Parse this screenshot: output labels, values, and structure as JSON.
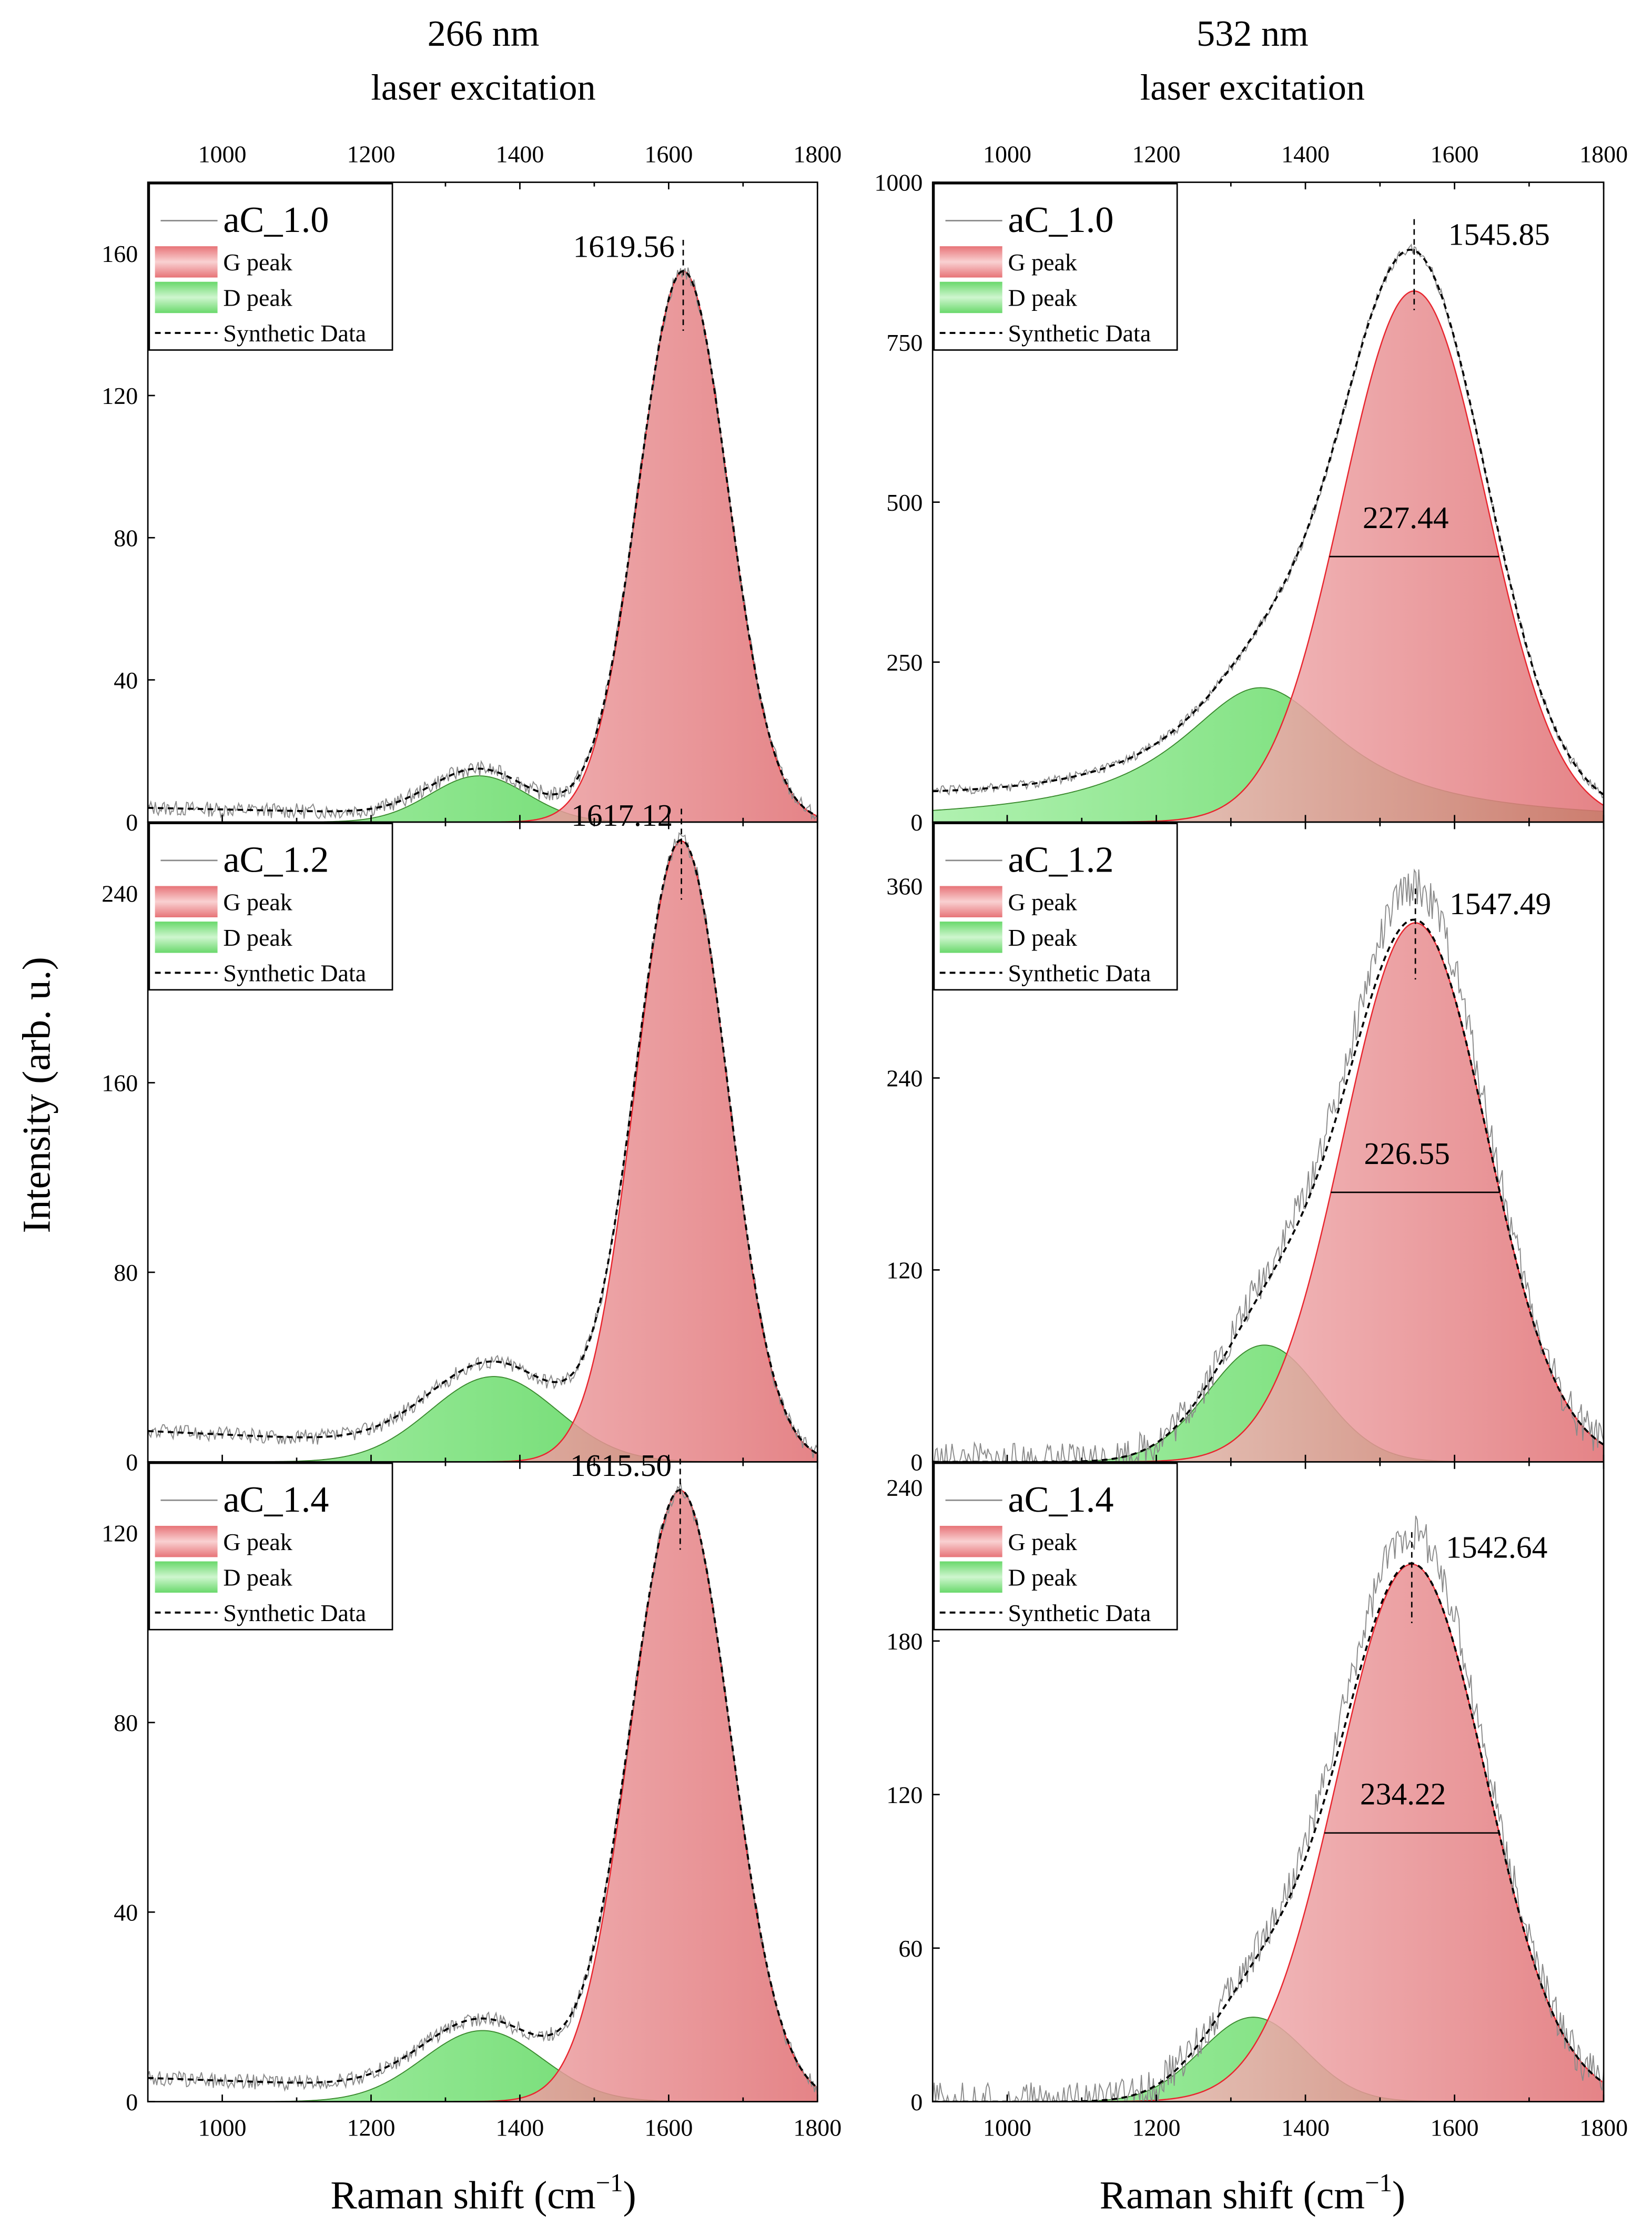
{
  "chart_data": {
    "type": "line",
    "columns": [
      {
        "title_line1": "266 nm",
        "title_line2": "laser excitation",
        "xlabel": "Raman shift",
        "xunit": "(cm",
        "xunit_exp": "−1",
        "xunit_close": ")",
        "xlim": [
          900,
          1800
        ],
        "xticks": [
          1000,
          1200,
          1400,
          1600,
          1800
        ]
      },
      {
        "title_line1": "532 nm",
        "title_line2": "laser excitation",
        "xlabel": "Raman shift",
        "xunit": "(cm",
        "xunit_exp": "−1",
        "xunit_close": ")",
        "xlim": [
          900,
          1800
        ],
        "xticks": [
          1000,
          1200,
          1400,
          1600,
          1800
        ]
      }
    ],
    "ylabel": "Intensity (arb. u.)",
    "legend_labels": {
      "g": "G peak",
      "d": "D peak",
      "synthetic": "Synthetic Data"
    },
    "colors": {
      "g_peak": "#e9787c",
      "g_edge": "#e8262f",
      "d_peak": "#7ee47e",
      "d_edge": "#3a8a2e",
      "raw": "#8a8a8a",
      "synthetic": "#000000"
    },
    "panels": [
      {
        "sample": "aC_1.0",
        "column": 0,
        "row": 0,
        "ylim": [
          0,
          180
        ],
        "yticks": [
          0,
          40,
          80,
          120,
          160
        ],
        "g": {
          "center": 1619.56,
          "amp": 155,
          "sigma": 60
        },
        "d": {
          "center": 1345,
          "amp": 13,
          "sigma": 65
        },
        "baseline": {
          "start": 4,
          "end": 0
        },
        "peak_label": "1619.56"
      },
      {
        "sample": "aC_1.2",
        "column": 0,
        "row": 1,
        "ylim": [
          0,
          270
        ],
        "yticks": [
          0,
          80,
          160,
          240
        ],
        "g": {
          "center": 1617.12,
          "amp": 262,
          "sigma": 62
        },
        "d": {
          "center": 1365,
          "amp": 36,
          "sigma": 85
        },
        "baseline": {
          "start": 13,
          "end": 0
        },
        "peak_label": "1617.12"
      },
      {
        "sample": "aC_1.4",
        "column": 0,
        "row": 2,
        "ylim": [
          0,
          135
        ],
        "yticks": [
          0,
          40,
          80,
          120
        ],
        "g": {
          "center": 1615.5,
          "amp": 129,
          "sigma": 67
        },
        "d": {
          "center": 1350,
          "amp": 15,
          "sigma": 80
        },
        "baseline": {
          "start": 5,
          "end": 0
        },
        "peak_label": "1615.50"
      },
      {
        "sample": "aC_1.0",
        "column": 1,
        "row": 0,
        "ylim": [
          0,
          1000
        ],
        "yticks": [
          0,
          250,
          500,
          750,
          1000
        ],
        "g": {
          "center": 1545.85,
          "amp": 830,
          "sigma": 96.6
        },
        "d": {
          "center": 1340,
          "amp": 210,
          "sigma": 115
        },
        "baseline": {
          "start": 30,
          "end": 0
        },
        "peak_label": "1545.85",
        "fwhm_label": "227.44"
      },
      {
        "sample": "aC_1.2",
        "column": 1,
        "row": 1,
        "ylim": [
          0,
          400
        ],
        "yticks": [
          0,
          120,
          240,
          360
        ],
        "g": {
          "center": 1547.49,
          "amp": 337,
          "sigma": 96.2
        },
        "d": {
          "center": 1345,
          "amp": 73,
          "sigma": 75
        },
        "baseline": {
          "start": 0,
          "end": 0
        },
        "peak_label": "1547.49",
        "fwhm_label": "226.55"
      },
      {
        "sample": "aC_1.4",
        "column": 1,
        "row": 2,
        "ylim": [
          0,
          250
        ],
        "yticks": [
          0,
          60,
          120,
          180,
          240
        ],
        "g": {
          "center": 1542.64,
          "amp": 210,
          "sigma": 99.5
        },
        "d": {
          "center": 1330,
          "amp": 33,
          "sigma": 70
        },
        "baseline": {
          "start": 0,
          "end": 0
        },
        "peak_label": "1542.64",
        "fwhm_label": "234.22"
      }
    ]
  }
}
